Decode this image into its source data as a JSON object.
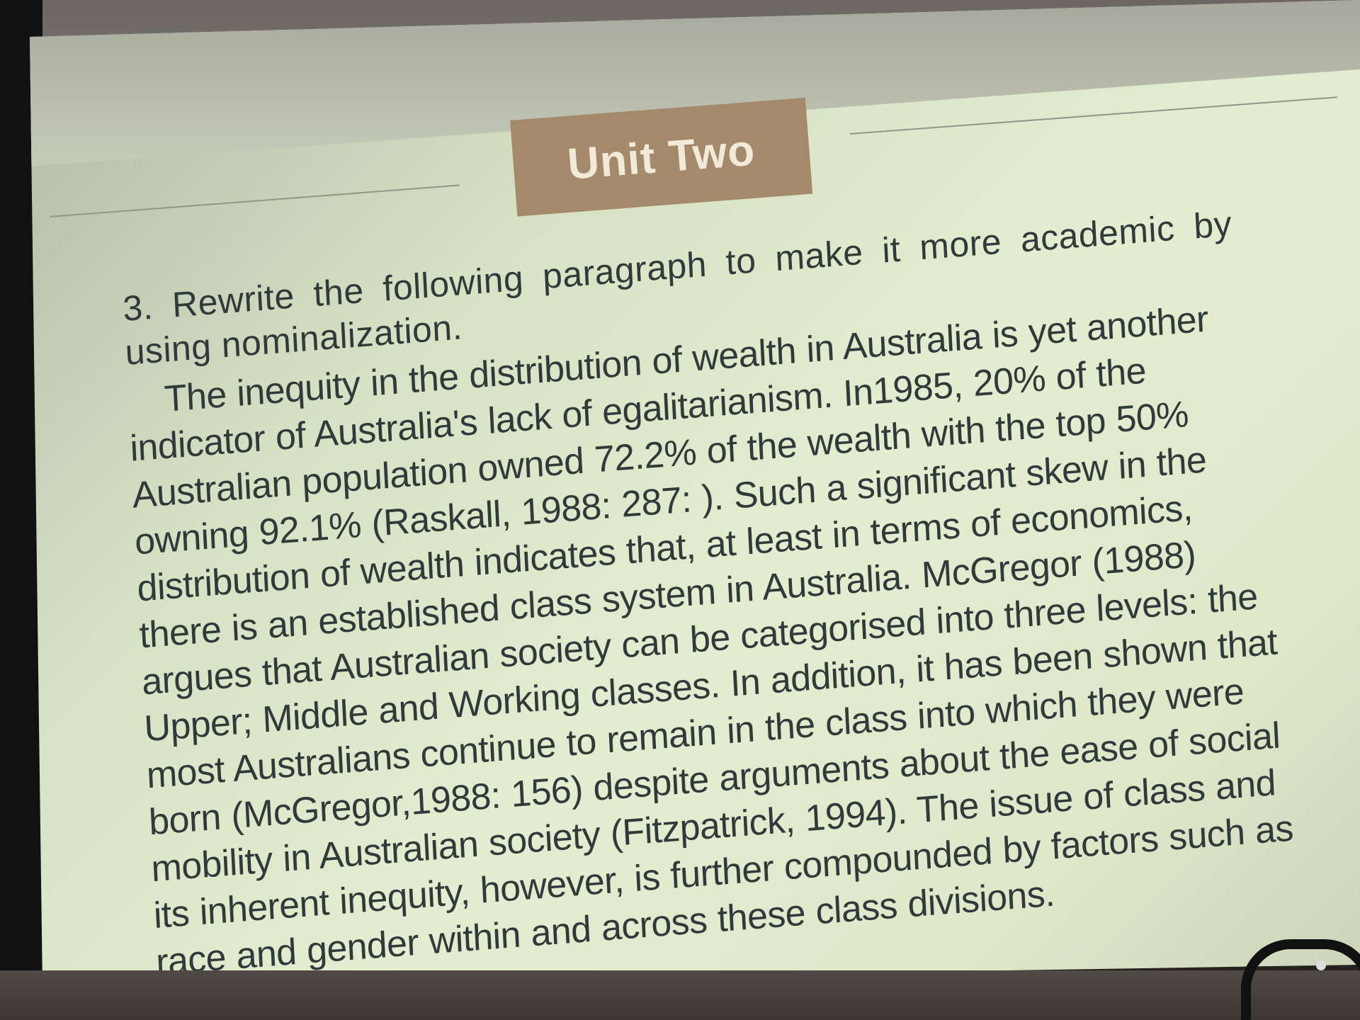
{
  "slide": {
    "title": "Unit Two",
    "instruction": "3. Rewrite the following paragraph to make it more academic by using nominalization.",
    "paragraph": "The inequity in the distribution of wealth in Australia is yet another indicator of Australia's lack of egalitarianism. In1985, 20% of the Australian population owned 72.2% of the wealth with the top 50% owning 92.1% (Raskall, 1988: 287: ). Such a significant skew in the distribution of wealth indicates that, at least in terms of economics, there is an established class system in Australia. McGregor (1988) argues that Australian society can be categorised into three levels: the Upper; Middle and Working classes. In addition, it has been shown that most Australians continue to remain in the class into which they were born (McGregor,1988: 156) despite arguments about the ease of social mobility in Australian society (Fitzpatrick, 1994). The issue of class and its inherent inequity, however, is further compounded by factors such as race and gender within and across these class divisions."
  },
  "colors": {
    "screen": "#e0eacd",
    "title_box": "#a4896a",
    "title_text": "#f2ead9",
    "body_text": "#2f3b3a"
  }
}
